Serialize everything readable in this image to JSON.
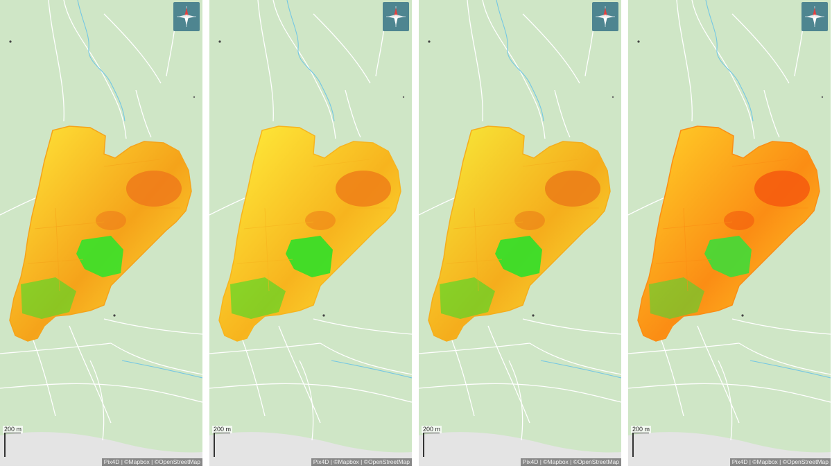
{
  "panels": [
    {
      "id": "p1",
      "scale_label": "200 m",
      "attribution": "Pix4D | ©Mapbox | ©OpenStreetMap",
      "colors": [
        "#ffe93a",
        "#f5a31a",
        "#ef7a1a",
        "#35e22a"
      ]
    },
    {
      "id": "p2",
      "scale_label": "200 m",
      "attribution": "Pix4D | ©Mapbox | ©OpenStreetMap",
      "colors": [
        "#fff13d",
        "#f7b41e",
        "#ee7f18",
        "#2fe028"
      ]
    },
    {
      "id": "p3",
      "scale_label": "200 m",
      "attribution": "Pix4D | ©Mapbox | ©OpenStreetMap",
      "colors": [
        "#f8ee3b",
        "#f5ad1c",
        "#eb7c18",
        "#2fe02a"
      ]
    },
    {
      "id": "p4",
      "scale_label": "200 m",
      "attribution": "Pix4D | ©Mapbox | ©OpenStreetMap",
      "colors": [
        "#ffd42a",
        "#fb8d14",
        "#f4590e",
        "#3fdc37"
      ]
    }
  ],
  "map": {
    "base_color": "#cfe6c6",
    "road_color": "#ffffff",
    "water_color": "#74c7e3",
    "urban_color": "#e4e4e4",
    "compass_icon": "compass-rose-icon",
    "compass_bg": "#4e8590"
  }
}
